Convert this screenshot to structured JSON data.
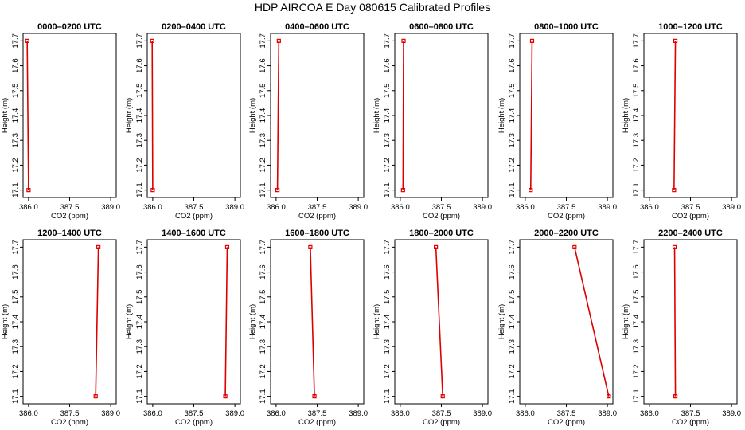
{
  "title": "HDP AIRCOA E  Day 080615  Calibrated Profiles",
  "chart_data": {
    "type": "line",
    "xlabel": "CO2 (ppm)",
    "ylabel": "Height (m)",
    "xlim": [
      385.8,
      389.2
    ],
    "ylim": [
      17.07,
      17.73
    ],
    "xticks": [
      "386.0",
      "387.5",
      "389.0"
    ],
    "xtick_values": [
      386.0,
      387.5,
      389.0
    ],
    "yticks": [
      "17.1",
      "17.2",
      "17.3",
      "17.4",
      "17.5",
      "17.6",
      "17.7"
    ],
    "ytick_values": [
      17.1,
      17.2,
      17.3,
      17.4,
      17.5,
      17.6,
      17.7
    ],
    "line_color": "#dd0000",
    "panels": [
      {
        "title": "0000–0200 UTC",
        "heights": [
          17.1,
          17.7
        ],
        "co2": [
          386.0,
          385.95
        ]
      },
      {
        "title": "0200–0400 UTC",
        "heights": [
          17.1,
          17.7
        ],
        "co2": [
          386.0,
          385.98
        ]
      },
      {
        "title": "0400–0600 UTC",
        "heights": [
          17.1,
          17.7
        ],
        "co2": [
          386.05,
          386.1
        ]
      },
      {
        "title": "0600–0800 UTC",
        "heights": [
          17.1,
          17.7
        ],
        "co2": [
          386.1,
          386.12
        ]
      },
      {
        "title": "0800–1000 UTC",
        "heights": [
          17.1,
          17.7
        ],
        "co2": [
          386.2,
          386.25
        ]
      },
      {
        "title": "1000–1200 UTC",
        "heights": [
          17.1,
          17.7
        ],
        "co2": [
          386.9,
          386.95
        ]
      },
      {
        "title": "1200–1400 UTC",
        "heights": [
          17.1,
          17.7
        ],
        "co2": [
          388.45,
          388.55
        ]
      },
      {
        "title": "1400–1600 UTC",
        "heights": [
          17.1,
          17.7
        ],
        "co2": [
          388.65,
          388.72
        ]
      },
      {
        "title": "1600–1800 UTC",
        "heights": [
          17.1,
          17.7
        ],
        "co2": [
          387.4,
          387.25
        ]
      },
      {
        "title": "1800–2000 UTC",
        "heights": [
          17.1,
          17.7
        ],
        "co2": [
          387.55,
          387.3
        ]
      },
      {
        "title": "2000–2200 UTC",
        "heights": [
          17.1,
          17.7
        ],
        "co2": [
          389.05,
          387.8
        ]
      },
      {
        "title": "2200–2400 UTC",
        "heights": [
          17.1,
          17.7
        ],
        "co2": [
          386.95,
          386.92
        ]
      }
    ]
  }
}
